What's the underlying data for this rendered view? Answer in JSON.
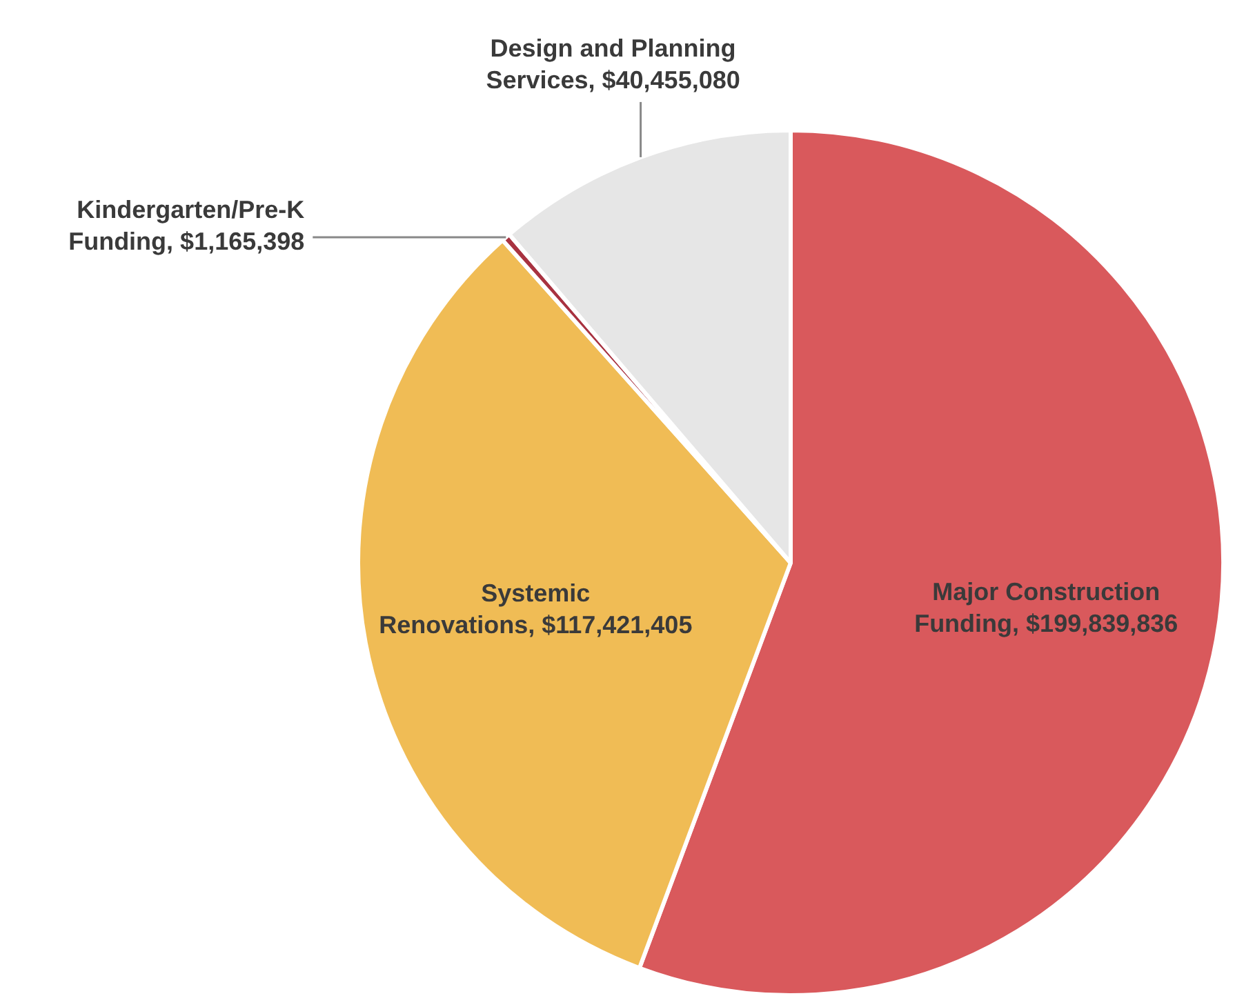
{
  "chart_data": {
    "type": "pie",
    "categories": [
      "Major Construction Funding",
      "Systemic Renovations",
      "Kindergarten/Pre-K Funding",
      "Design and Planning Services"
    ],
    "values": [
      199839836,
      117421405,
      1165398,
      40455080
    ],
    "value_labels": [
      "$199,839,836",
      "$117,421,405",
      "$1,165,398",
      "$40,455,080"
    ],
    "colors": [
      "#d9595c",
      "#f0bc55",
      "#a83240",
      "#e6e6e6"
    ],
    "legend": false
  }
}
